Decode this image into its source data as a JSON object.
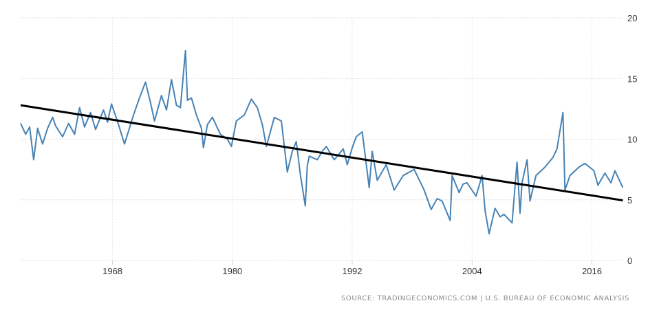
{
  "chart_data": {
    "type": "line",
    "title": "",
    "xlabel": "",
    "ylabel": "",
    "xlim": [
      1958.8,
      2019.2
    ],
    "ylim": [
      0,
      20
    ],
    "grid": true,
    "x_ticks": [
      "1968",
      "1980",
      "1992",
      "2004",
      "2016"
    ],
    "x_tick_values": [
      1968,
      1980,
      1992,
      2004,
      2016
    ],
    "y_ticks": [
      "20",
      "15",
      "10",
      "5",
      "0"
    ],
    "y_tick_values": [
      20,
      15,
      10,
      5,
      0
    ],
    "y_axis_side": "right",
    "series": [
      {
        "name": "series",
        "color": "#4682b4",
        "x": [
          1958.8,
          1959.3,
          1959.7,
          1960.1,
          1960.5,
          1961.0,
          1961.5,
          1962.0,
          1962.3,
          1963.0,
          1963.6,
          1964.2,
          1964.7,
          1965.2,
          1965.8,
          1966.3,
          1967.1,
          1967.5,
          1967.9,
          1968.6,
          1969.2,
          1970.1,
          1970.7,
          1971.3,
          1971.8,
          1972.2,
          1972.9,
          1973.4,
          1973.9,
          1974.4,
          1974.8,
          1975.3,
          1975.5,
          1975.9,
          1976.4,
          1976.9,
          1977.1,
          1977.5,
          1978.0,
          1978.8,
          1979.5,
          1979.9,
          1980.4,
          1981.2,
          1981.9,
          1982.5,
          1983.0,
          1983.4,
          1984.2,
          1984.9,
          1985.5,
          1986.0,
          1986.4,
          1986.8,
          1987.3,
          1987.5,
          1987.7,
          1988.5,
          1989.0,
          1989.4,
          1990.2,
          1991.1,
          1991.5,
          1992.0,
          1992.4,
          1993.0,
          1993.7,
          1994.0,
          1994.5,
          1995.4,
          1996.2,
          1997.1,
          1998.2,
          1999.2,
          1999.9,
          2000.5,
          2001.0,
          2001.8,
          2002.0,
          2002.7,
          2003.1,
          2003.5,
          2004.4,
          2005.0,
          2005.3,
          2005.7,
          2006.3,
          2006.8,
          2007.2,
          2008.0,
          2008.5,
          2008.8,
          2009.0,
          2009.5,
          2009.8,
          2010.4,
          2011.3,
          2012.1,
          2012.5,
          2013.1,
          2013.3,
          2013.8,
          2014.7,
          2015.3,
          2016.2,
          2016.6,
          2017.3,
          2017.9,
          2018.3,
          2019.1
        ],
        "values": [
          11.3,
          10.4,
          11.0,
          8.3,
          10.9,
          9.6,
          10.9,
          11.8,
          11.1,
          10.2,
          11.3,
          10.4,
          12.6,
          11.0,
          12.2,
          10.8,
          12.4,
          11.4,
          12.9,
          11.2,
          9.6,
          12.0,
          13.4,
          14.7,
          13.0,
          11.5,
          13.6,
          12.4,
          14.9,
          12.8,
          12.6,
          17.3,
          13.2,
          13.4,
          12.0,
          10.9,
          9.3,
          11.2,
          11.8,
          10.4,
          10.0,
          9.4,
          11.5,
          12.0,
          13.3,
          12.6,
          11.2,
          9.4,
          11.8,
          11.5,
          7.3,
          9.0,
          9.8,
          7.1,
          4.5,
          7.8,
          8.6,
          8.3,
          9.0,
          9.4,
          8.3,
          9.2,
          7.9,
          9.3,
          10.2,
          10.6,
          6.0,
          9.0,
          6.6,
          7.9,
          5.8,
          7.0,
          7.5,
          5.8,
          4.2,
          5.1,
          4.9,
          3.3,
          7.0,
          5.6,
          6.3,
          6.4,
          5.3,
          7.0,
          4.1,
          2.2,
          4.3,
          3.6,
          3.8,
          3.1,
          8.1,
          3.9,
          6.4,
          8.3,
          4.9,
          7.0,
          7.7,
          8.5,
          9.2,
          12.2,
          5.8,
          7.0,
          7.7,
          8.0,
          7.4,
          6.2,
          7.2,
          6.4,
          7.4,
          6.0
        ]
      },
      {
        "name": "trend",
        "color": "#000000",
        "x": [
          1958.8,
          2019.1
        ],
        "values": [
          12.8,
          4.95
        ]
      }
    ],
    "source": "SOURCE: TRADINGECONOMICS.COM | U.S. BUREAU OF ECONOMIC ANALYSIS"
  }
}
